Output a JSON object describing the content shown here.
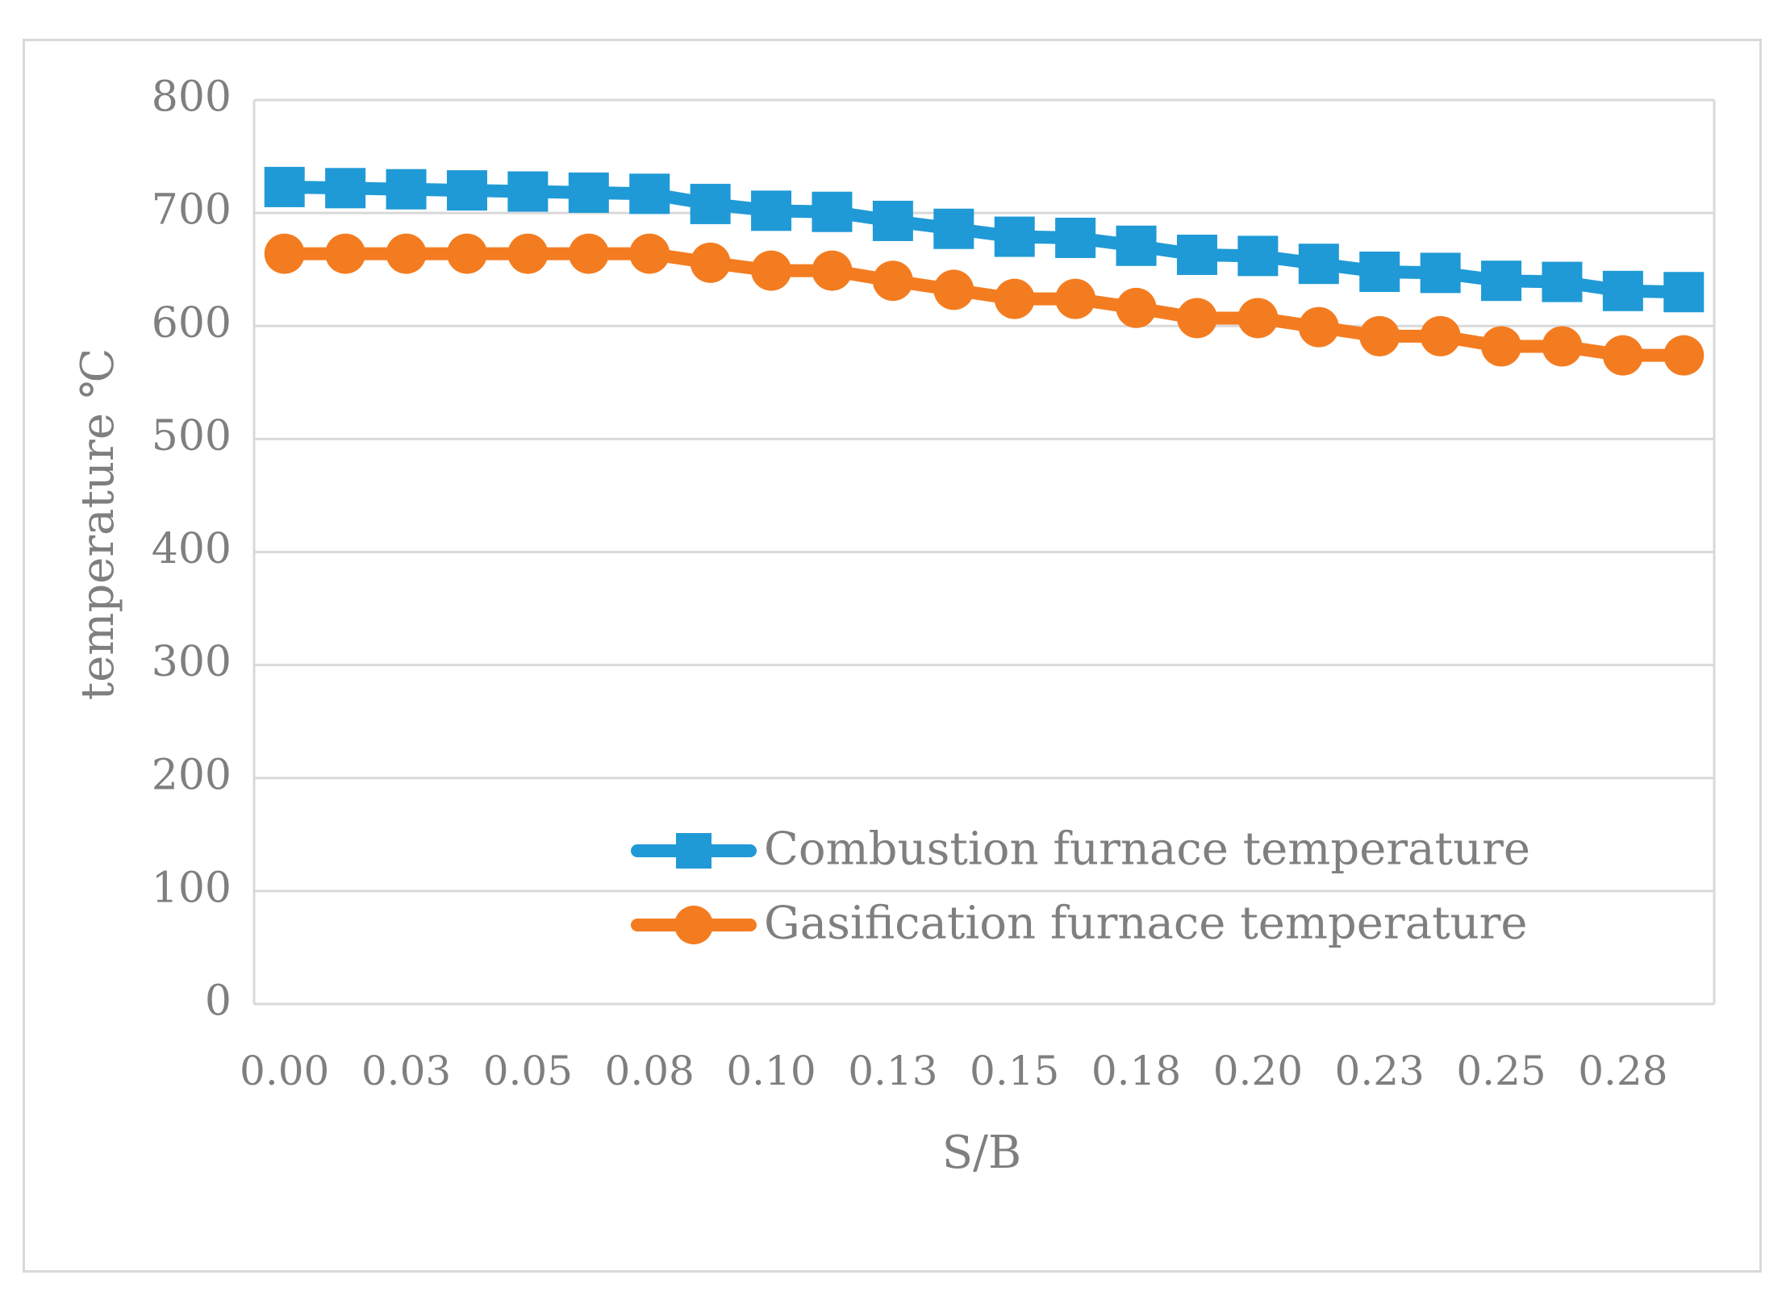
{
  "chart_data": {
    "type": "line",
    "title": "",
    "xlabel": "S/B",
    "ylabel": "temperature ℃",
    "ylim": [
      0,
      800
    ],
    "yticks": [
      "0",
      "100",
      "200",
      "300",
      "400",
      "500",
      "600",
      "700",
      "800"
    ],
    "x_tick_labels": [
      "0.00",
      "0.03",
      "0.05",
      "0.08",
      "0.10",
      "0.13",
      "0.15",
      "0.18",
      "0.20",
      "0.23",
      "0.25",
      "0.28"
    ],
    "grid": "horizontal",
    "legend_position": "lower-right",
    "series": [
      {
        "name": "Combustion furnace temperature",
        "color": "#1f9ad6",
        "marker": "square",
        "values": [
          723,
          722,
          721,
          720,
          719,
          718,
          717,
          708,
          702,
          701,
          693,
          686,
          679,
          678,
          671,
          663,
          662,
          655,
          648,
          647,
          640,
          639,
          631,
          630
        ]
      },
      {
        "name": "Gasification furnace temperature",
        "color": "#f47c20",
        "marker": "circle",
        "values": [
          664,
          664,
          664,
          664,
          664,
          664,
          664,
          656,
          649,
          649,
          640,
          632,
          624,
          624,
          616,
          607,
          607,
          599,
          591,
          591,
          582,
          582,
          574,
          574
        ]
      }
    ]
  }
}
